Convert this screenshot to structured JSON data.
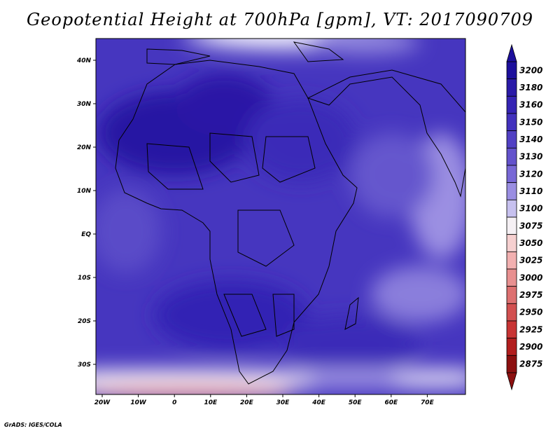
{
  "title": "Geopotential Height at 700hPa [gpm], VT: 2017090709",
  "footer": "GrADS: IGES/COLA",
  "map": {
    "lon_labels": [
      "20W",
      "10W",
      "0",
      "10E",
      "20E",
      "30E",
      "40E",
      "50E",
      "60E",
      "70E"
    ],
    "lat_labels": [
      "40N",
      "30N",
      "20N",
      "10N",
      "EQ",
      "10S",
      "20S",
      "30S"
    ]
  },
  "colorbar": {
    "levels": [
      "3200",
      "3180",
      "3160",
      "3150",
      "3140",
      "3130",
      "3120",
      "3110",
      "3100",
      "3075",
      "3050",
      "3025",
      "3000",
      "2975",
      "2950",
      "2925",
      "2900",
      "2875"
    ],
    "colors": [
      "#1c0f9c",
      "#2a1aa8",
      "#3524b4",
      "#4231bd",
      "#5140c4",
      "#6352cc",
      "#7868d6",
      "#9a8ee2",
      "#c7c1ef",
      "#f5f0f4",
      "#f6d0d0",
      "#f2b0b0",
      "#e89090",
      "#dd7070",
      "#d25050",
      "#c83434",
      "#b21e1e",
      "#8c1010"
    ]
  }
}
